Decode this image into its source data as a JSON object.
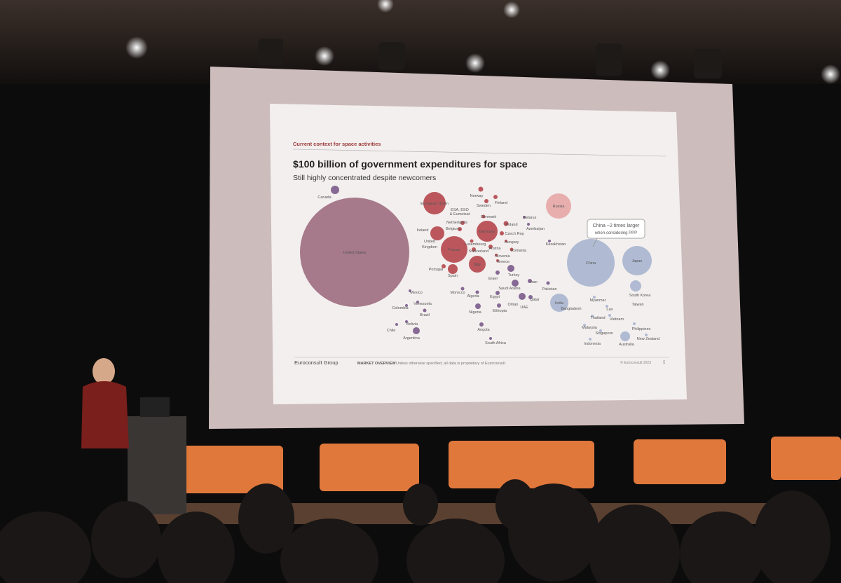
{
  "slide": {
    "header": "Current context for space activities",
    "title": "$100 billion of government expenditures for space",
    "subtitle": "Still highly concentrated despite newcomers",
    "annotation": [
      "China ~2 times larger",
      "when considering PPP"
    ],
    "labels": [
      "Canada",
      "United States",
      "European Union",
      "ESA, ESO",
      "& Eumetsat",
      "Norway",
      "Sweden",
      "Finland",
      "Denmark",
      "Netherlands",
      "Belgium",
      "Ireland",
      "Germany",
      "Poland",
      "Czech Rep",
      "Belarus",
      "Azerbaijan",
      "United",
      "Kingdom",
      "France",
      "Luxembourg",
      "Switzerland",
      "Hungary",
      "Austria",
      "Romania",
      "Slovenia",
      "Greece",
      "Kazakhstan",
      "Italy",
      "Portugal",
      "Spain",
      "Israel",
      "Turkey",
      "Iran",
      "Pakistan",
      "Saudi Arabia",
      "Morocco",
      "Algeria",
      "Egypt",
      "Qatar",
      "Oman",
      "UAE",
      "Nigeria",
      "Ethiopia",
      "Angola",
      "South Africa",
      "Mexico",
      "Venezuela",
      "Colombia",
      "Brazil",
      "Bolivia",
      "Chile",
      "Argentina",
      "Russia",
      "China",
      "Japan",
      "India",
      "Bangladesh",
      "South Korea",
      "Taiwan",
      "Myanmar",
      "Lao",
      "Vietnam",
      "Thailand",
      "Malaysia",
      "Singapore",
      "Indonesia",
      "Philippines",
      "Australia",
      "New Zealand"
    ],
    "footer": {
      "brand": "Euroconsult Group",
      "section": "MARKET OVERVIEW",
      "note": "Unless otherwise specified, all data is proprietary of Euroconsult",
      "copyright": "© Euroconsult 2023",
      "page": "5"
    }
  }
}
